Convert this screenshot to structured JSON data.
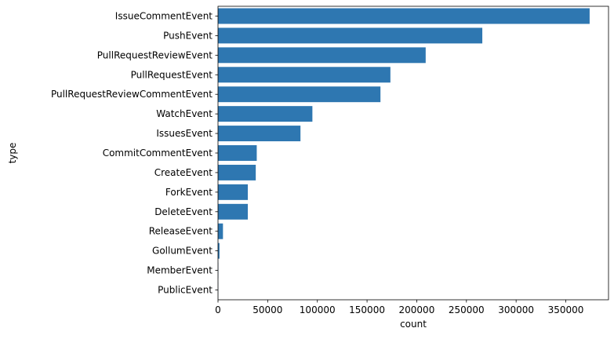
{
  "chart_data": {
    "type": "bar",
    "orientation": "horizontal",
    "title": "",
    "xlabel": "count",
    "ylabel": "type",
    "xlim": [
      0,
      393000
    ],
    "xticks": [
      0,
      50000,
      100000,
      150000,
      200000,
      250000,
      300000,
      350000
    ],
    "grid": false,
    "bar_color": "#2e77b1",
    "categories": [
      "IssueCommentEvent",
      "PushEvent",
      "PullRequestReviewEvent",
      "PullRequestEvent",
      "PullRequestReviewCommentEvent",
      "WatchEvent",
      "IssuesEvent",
      "CommitCommentEvent",
      "CreateEvent",
      "ForkEvent",
      "DeleteEvent",
      "ReleaseEvent",
      "GollumEvent",
      "MemberEvent",
      "PublicEvent"
    ],
    "values": [
      374000,
      266000,
      209000,
      173500,
      163500,
      95000,
      83000,
      39000,
      38000,
      30000,
      30000,
      5000,
      1500,
      300,
      150
    ]
  }
}
